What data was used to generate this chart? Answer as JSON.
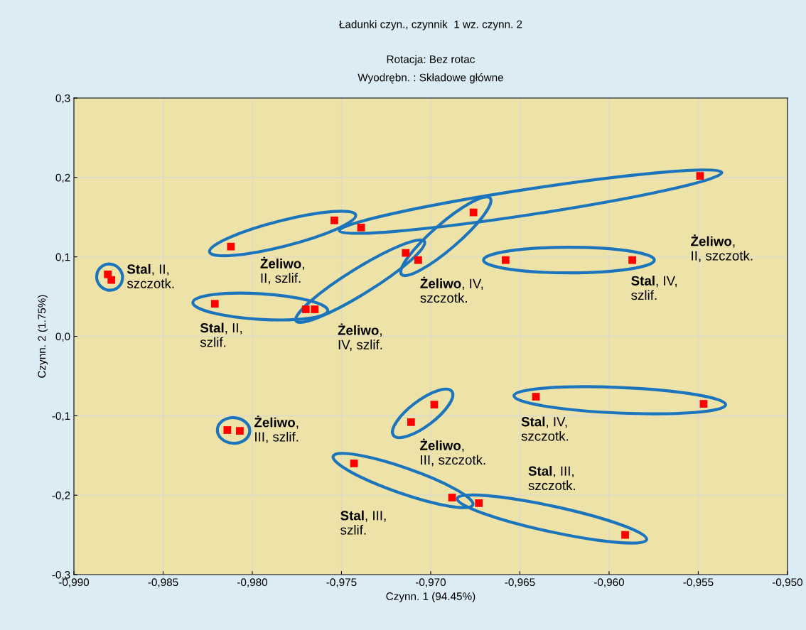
{
  "chart_data": {
    "type": "scatter",
    "title": "Ładunki czyn., czynnik  1 wz. czynn. 2",
    "subtitle": "Rotacja: Bez rotac\nWyodrębn. : Składowe główne",
    "xlabel": "Czynn. 1 (94.45%)",
    "ylabel": "Czynn. 2 (1.75%)",
    "xlim": [
      -0.99,
      -0.95
    ],
    "ylim": [
      -0.3,
      0.3
    ],
    "xticks": [
      {
        "value": -0.99,
        "label": "-0,990"
      },
      {
        "value": -0.985,
        "label": "-0,985"
      },
      {
        "value": -0.98,
        "label": "-0,980"
      },
      {
        "value": -0.975,
        "label": "-0,975"
      },
      {
        "value": -0.97,
        "label": "-0,970"
      },
      {
        "value": -0.965,
        "label": "-0,965"
      },
      {
        "value": -0.96,
        "label": "-0,960"
      },
      {
        "value": -0.955,
        "label": "-0,955"
      },
      {
        "value": -0.95,
        "label": "-0,950"
      }
    ],
    "yticks": [
      {
        "value": -0.3,
        "label": "-0,3"
      },
      {
        "value": -0.2,
        "label": "-0,2"
      },
      {
        "value": -0.1,
        "label": "-0,1"
      },
      {
        "value": 0.0,
        "label": "0,0"
      },
      {
        "value": 0.1,
        "label": "0,1"
      },
      {
        "value": 0.2,
        "label": "0,2"
      },
      {
        "value": 0.3,
        "label": "0,3"
      }
    ],
    "grid": true,
    "marker": "square",
    "legend": false,
    "series": [
      {
        "color": "#ff0000",
        "x": [
          -0.9881,
          -0.9879
        ],
        "values": [
          0.078,
          0.071
        ]
      },
      {
        "color": "#ff0000",
        "x": [
          -0.9812,
          -0.9754
        ],
        "values": [
          0.113,
          0.146
        ]
      },
      {
        "color": "#ff0000",
        "x": [
          -0.9739,
          -0.9549
        ],
        "values": [
          0.137,
          0.202
        ]
      },
      {
        "color": "#ff0000",
        "x": [
          -0.9821,
          -0.977
        ],
        "values": [
          0.041,
          0.034
        ]
      },
      {
        "color": "#ff0000",
        "x": [
          -0.9765,
          -0.9714
        ],
        "values": [
          0.034,
          0.105
        ]
      },
      {
        "color": "#ff0000",
        "x": [
          -0.9707,
          -0.9676
        ],
        "values": [
          0.096,
          0.156
        ]
      },
      {
        "color": "#ff0000",
        "x": [
          -0.9658,
          -0.9587
        ],
        "values": [
          0.096,
          0.096
        ]
      },
      {
        "color": "#ff0000",
        "x": [
          -0.9814,
          -0.9807
        ],
        "values": [
          -0.118,
          -0.119
        ]
      },
      {
        "color": "#ff0000",
        "x": [
          -0.9711,
          -0.9698
        ],
        "values": [
          -0.108,
          -0.086
        ]
      },
      {
        "color": "#ff0000",
        "x": [
          -0.9641,
          -0.9547
        ],
        "values": [
          -0.076,
          -0.085
        ]
      },
      {
        "color": "#ff0000",
        "x": [
          -0.9743,
          -0.9688
        ],
        "values": [
          -0.16,
          -0.203
        ]
      },
      {
        "color": "#ff0000",
        "x": [
          -0.9673,
          -0.9591
        ],
        "values": [
          -0.21,
          -0.25
        ]
      }
    ],
    "annotations": [
      "Stal, II,\nszczotk.",
      "Żeliwo,\nII, szlif.",
      "Żeliwo,\nII, szczotk.",
      "Stal, II,\nszlif.",
      "Żeliwo,\nIV, szlif.",
      "Żeliwo, IV,\nszczotk.",
      "Stal, IV,\nszlif.",
      "Żeliwo,\nIII, szlif.",
      "Żeliwo,\nIII, szczotk.",
      "Stal, IV,\nszczotk.",
      "Stal, III,\nszlif.",
      "Stal, III,\nszczotk."
    ]
  }
}
